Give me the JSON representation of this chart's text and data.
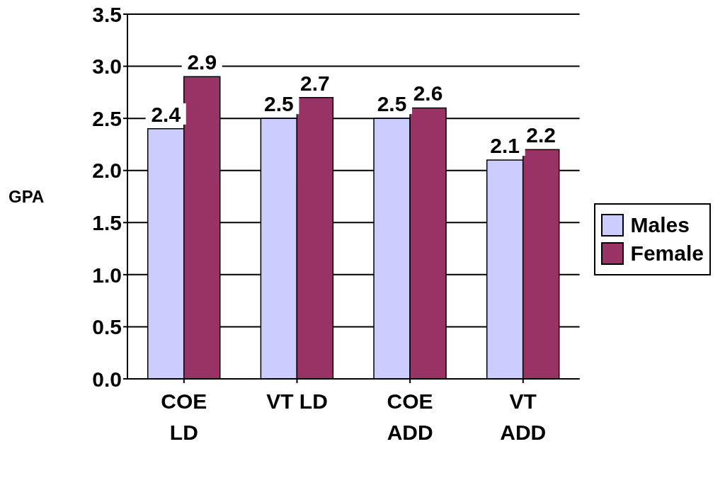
{
  "chart_data": {
    "type": "bar",
    "ylabel": "GPA",
    "categories": [
      "COE LD",
      "VT LD",
      "COE ADD",
      "VT ADD"
    ],
    "series": [
      {
        "name": "Males",
        "color": "#ccccff",
        "values": [
          2.4,
          2.5,
          2.5,
          2.1
        ]
      },
      {
        "name": "Female",
        "color": "#993366",
        "values": [
          2.9,
          2.7,
          2.6,
          2.2
        ]
      }
    ],
    "ylim": [
      0,
      3.5
    ],
    "yticks": [
      {
        "value": 0,
        "label": "0.0"
      },
      0.5,
      {
        "value": 1,
        "label": "1.0"
      },
      1.5,
      {
        "value": 2,
        "label": "2.0"
      },
      2.5,
      {
        "value": 3,
        "label": "3.0"
      },
      3.5
    ],
    "grid": "y",
    "legend": "right",
    "data_labels": true
  }
}
